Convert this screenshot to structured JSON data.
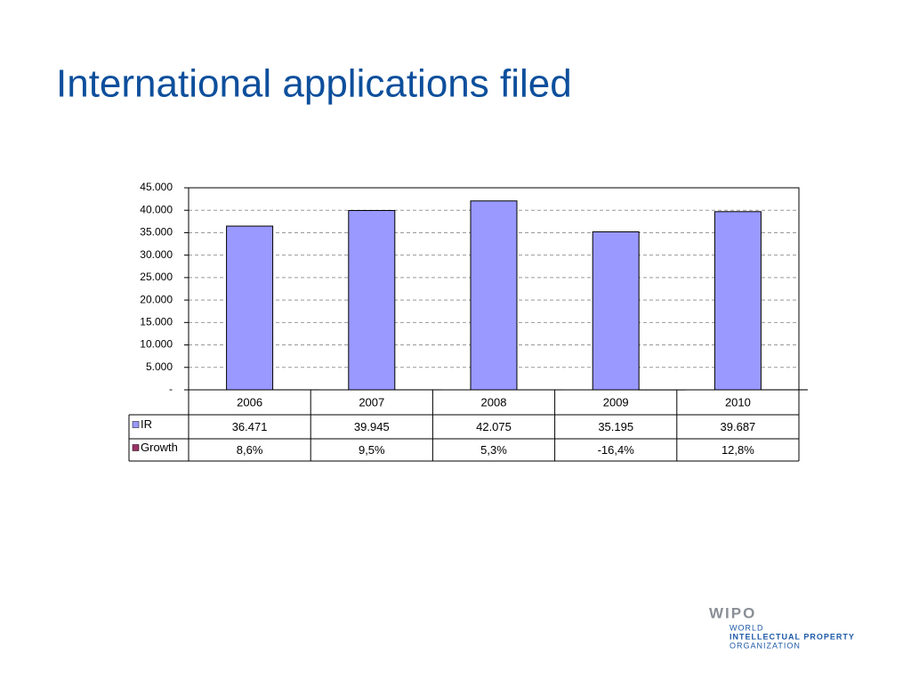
{
  "chart_data": {
    "type": "bar",
    "title": "International applications filed",
    "categories": [
      "2006",
      "2007",
      "2008",
      "2009",
      "2010"
    ],
    "series": [
      {
        "name": "IR",
        "color": "#9999ff",
        "values": [
          36471,
          39945,
          42075,
          35195,
          39687
        ],
        "value_labels": [
          "36.471",
          "39.945",
          "42.075",
          "35.195",
          "39.687"
        ]
      },
      {
        "name": "Growth",
        "color": "#993366",
        "values": [
          8.6,
          9.5,
          5.3,
          -16.4,
          12.8
        ],
        "value_labels": [
          "8,6%",
          "9,5%",
          "5,3%",
          "-16,4%",
          "12,8%"
        ]
      }
    ],
    "ylim": [
      0,
      45000
    ],
    "yticks": [
      {
        "value": 0,
        "label": "-"
      },
      {
        "value": 5000,
        "label": "5.000"
      },
      {
        "value": 10000,
        "label": "10.000"
      },
      {
        "value": 15000,
        "label": "15.000"
      },
      {
        "value": 20000,
        "label": "20.000"
      },
      {
        "value": 25000,
        "label": "25.000"
      },
      {
        "value": 30000,
        "label": "30.000"
      },
      {
        "value": 35000,
        "label": "35.000"
      },
      {
        "value": 40000,
        "label": "40.000"
      },
      {
        "value": 45000,
        "label": "45.000"
      }
    ],
    "grid": true
  },
  "logo": {
    "mark": "WIPO",
    "lines": [
      "WORLD",
      "INTELLECTUAL PROPERTY",
      "ORGANIZATION"
    ]
  }
}
